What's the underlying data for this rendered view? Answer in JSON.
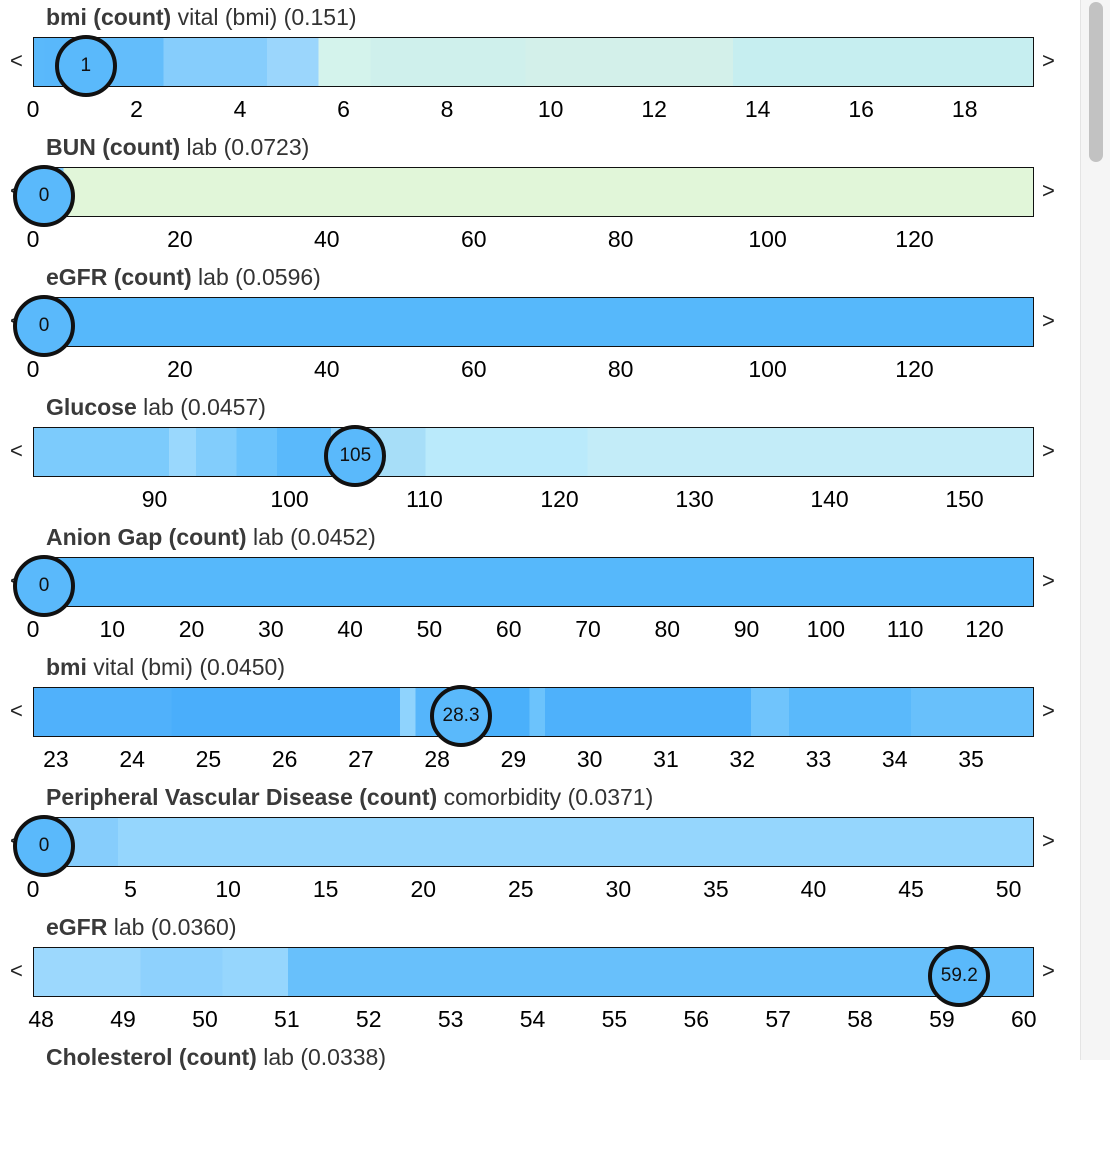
{
  "rows": [
    {
      "name": "bmi (count)",
      "category": "vital (bmi)",
      "score": "(0.151)",
      "range": [
        0,
        19.3
      ],
      "value": 1,
      "value_label": "1",
      "ticks": [
        0,
        2,
        4,
        6,
        8,
        10,
        12,
        14,
        16,
        18
      ],
      "bands": [
        {
          "to": 0.2,
          "color": "#5ab9fb"
        },
        {
          "to": 1.2,
          "color": "#59b8fb"
        },
        {
          "to": 2.5,
          "color": "#63bdfb"
        },
        {
          "to": 4.5,
          "color": "#86cdfc"
        },
        {
          "to": 5.5,
          "color": "#9bd6fc"
        },
        {
          "to": 6.5,
          "color": "#d4f3ec"
        },
        {
          "to": 9.5,
          "color": "#cff0ec"
        },
        {
          "to": 13.5,
          "color": "#d3f0ea"
        },
        {
          "to": 19.3,
          "color": "#c6eef0"
        }
      ]
    },
    {
      "name": "BUN (count)",
      "category": "lab",
      "score": "(0.0723)",
      "range": [
        0,
        136
      ],
      "value": 0,
      "value_label": "0",
      "ticks": [
        0,
        20,
        40,
        60,
        80,
        100,
        120
      ],
      "bands": [
        {
          "to": 4,
          "color": "#7dc9fc"
        },
        {
          "to": 136,
          "color": "#e1f6d9"
        }
      ]
    },
    {
      "name": "eGFR (count)",
      "category": "lab",
      "score": "(0.0596)",
      "range": [
        0,
        136
      ],
      "value": 0,
      "value_label": "0",
      "ticks": [
        0,
        20,
        40,
        60,
        80,
        100,
        120
      ],
      "bands": [
        {
          "to": 136,
          "color": "#56b8fb"
        }
      ]
    },
    {
      "name": "Glucose",
      "category": "lab",
      "score": "(0.0457)",
      "range": [
        81,
        155
      ],
      "value": 104.8,
      "value_label": "105",
      "ticks": [
        90,
        100,
        110,
        120,
        130,
        140,
        150
      ],
      "bands": [
        {
          "to": 91,
          "color": "#7ccbfc"
        },
        {
          "to": 93,
          "color": "#9ad8fd"
        },
        {
          "to": 96,
          "color": "#82cdfc"
        },
        {
          "to": 99,
          "color": "#6cc3fc"
        },
        {
          "to": 103,
          "color": "#5ab9fb"
        },
        {
          "to": 106,
          "color": "#8dd2fd"
        },
        {
          "to": 110,
          "color": "#a7def8"
        },
        {
          "to": 122,
          "color": "#baeafb"
        },
        {
          "to": 155,
          "color": "#c3ecf8"
        }
      ]
    },
    {
      "name": "Anion Gap (count)",
      "category": "lab",
      "score": "(0.0452)",
      "range": [
        0,
        126
      ],
      "value": 0,
      "value_label": "0",
      "ticks": [
        0,
        10,
        20,
        30,
        40,
        50,
        60,
        70,
        80,
        90,
        100,
        110,
        120
      ],
      "bands": [
        {
          "to": 126,
          "color": "#56b8fb"
        }
      ]
    },
    {
      "name": "bmi",
      "category": "vital (bmi)",
      "score": "(0.0450)",
      "range": [
        22.7,
        35.8
      ],
      "value": 28.3,
      "value_label": "28.3",
      "ticks": [
        23,
        24,
        25,
        26,
        27,
        28,
        29,
        30,
        31,
        32,
        33,
        34,
        35
      ],
      "bands": [
        {
          "to": 24.5,
          "color": "#50b1fb"
        },
        {
          "to": 27.5,
          "color": "#4aaefb"
        },
        {
          "to": 27.7,
          "color": "#8fd3fd"
        },
        {
          "to": 28.2,
          "color": "#55b5fb"
        },
        {
          "to": 29.2,
          "color": "#4ab0fb"
        },
        {
          "to": 29.4,
          "color": "#6cc3fc"
        },
        {
          "to": 32.1,
          "color": "#4eb1fb"
        },
        {
          "to": 32.6,
          "color": "#70c4fc"
        },
        {
          "to": 34.2,
          "color": "#5ab9fb"
        },
        {
          "to": 35.8,
          "color": "#68c0fb"
        }
      ]
    },
    {
      "name": "Peripheral Vascular Disease (count)",
      "category": "comorbidity",
      "score": "(0.0371)",
      "range": [
        0,
        51.2
      ],
      "value": 0,
      "value_label": "0",
      "ticks": [
        0,
        5,
        10,
        15,
        20,
        25,
        30,
        35,
        40,
        45,
        50
      ],
      "bands": [
        {
          "to": 4.3,
          "color": "#86cdfc"
        },
        {
          "to": 51.2,
          "color": "#95d6fd"
        }
      ]
    },
    {
      "name": "eGFR",
      "category": "lab",
      "score": "(0.0360)",
      "range": [
        47.9,
        60.1
      ],
      "value": 59.2,
      "value_label": "59.2",
      "ticks": [
        48,
        49,
        50,
        51,
        52,
        53,
        54,
        55,
        56,
        57,
        58,
        59,
        60
      ],
      "bands": [
        {
          "to": 49.2,
          "color": "#9cd8fd"
        },
        {
          "to": 50.2,
          "color": "#8ed1fd"
        },
        {
          "to": 51.0,
          "color": "#96d6fd"
        },
        {
          "to": 60.1,
          "color": "#68c0fb"
        }
      ]
    },
    {
      "name": "Cholesterol (count)",
      "category": "lab",
      "score": "(0.0338)",
      "range": [
        0,
        1
      ],
      "value": null,
      "value_label": "",
      "ticks": [],
      "bands": []
    }
  ],
  "nav": {
    "prev": "<",
    "next": ">"
  }
}
